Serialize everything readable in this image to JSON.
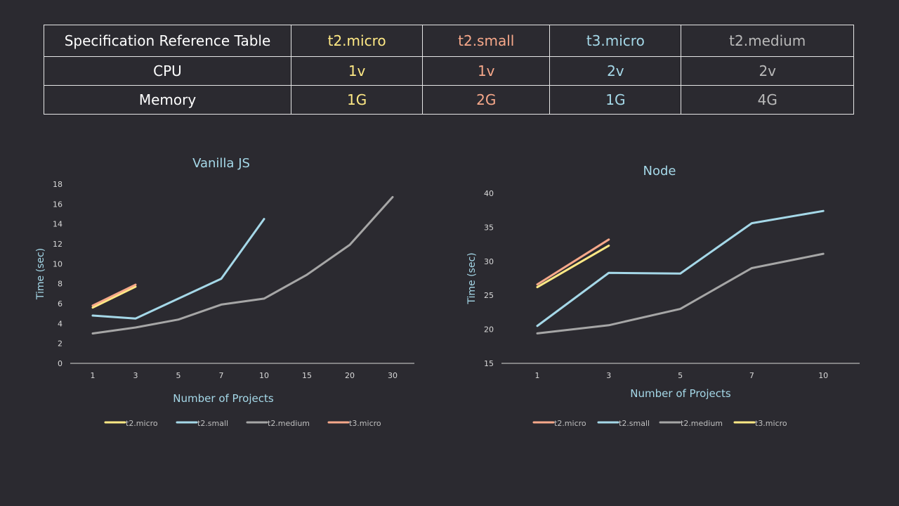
{
  "table": {
    "title": "Specification Reference Table",
    "columns": [
      {
        "name": "t2.micro",
        "color": "#ffe985",
        "cpu": "1v",
        "memory": "1G"
      },
      {
        "name": "t2.small",
        "color": "#f6a88a",
        "cpu": "1v",
        "memory": "2G"
      },
      {
        "name": "t3.micro",
        "color": "#a5d8e8",
        "cpu": "2v",
        "memory": "1G"
      },
      {
        "name": "t2.medium",
        "color": "#b9b9b9",
        "cpu": "2v",
        "memory": "4G"
      }
    ],
    "rows": [
      "CPU",
      "Memory"
    ]
  },
  "chart_data": [
    {
      "type": "line",
      "title": "Vanilla JS",
      "xlabel": "Number of Projects",
      "ylabel": "Time (sec)",
      "categories": [
        "1",
        "3",
        "5",
        "7",
        "10",
        "15",
        "20",
        "30"
      ],
      "ylim": [
        0,
        18
      ],
      "yticks": [
        "0",
        "2",
        "4",
        "6",
        "8",
        "10",
        "12",
        "14",
        "16",
        "18"
      ],
      "legend_position": "bottom",
      "series": [
        {
          "name": "t2.micro",
          "color": "#ffe985",
          "values": [
            5.6,
            7.7,
            null,
            null,
            null,
            null,
            null,
            null
          ]
        },
        {
          "name": "t2.small",
          "color": "#a5d8e8",
          "values": [
            4.8,
            4.5,
            6.5,
            8.5,
            14.5,
            null,
            null,
            null
          ]
        },
        {
          "name": "t2.medium",
          "color": "#a6a6a6",
          "values": [
            3.0,
            3.6,
            4.4,
            5.9,
            6.5,
            8.9,
            11.9,
            16.7
          ]
        },
        {
          "name": "t3.micro",
          "color": "#f6a88a",
          "values": [
            5.8,
            7.9,
            null,
            null,
            null,
            null,
            null,
            null
          ]
        }
      ]
    },
    {
      "type": "line",
      "title": "Node",
      "xlabel": "Number of Projects",
      "ylabel": "Time (sec)",
      "categories": [
        "1",
        "3",
        "5",
        "7",
        "10"
      ],
      "ylim": [
        15,
        40
      ],
      "yticks": [
        "15",
        "20",
        "25",
        "30",
        "35",
        "40"
      ],
      "legend_position": "bottom",
      "series": [
        {
          "name": "t2.micro",
          "color": "#f6a88a",
          "values": [
            26.6,
            33.2,
            null,
            null,
            null
          ]
        },
        {
          "name": "t2.small",
          "color": "#a5d8e8",
          "values": [
            20.5,
            28.3,
            28.2,
            35.6,
            37.4
          ]
        },
        {
          "name": "t2.medium",
          "color": "#a6a6a6",
          "values": [
            19.4,
            20.6,
            23.0,
            29.0,
            31.1
          ]
        },
        {
          "name": "t3.micro",
          "color": "#ffe985",
          "values": [
            26.2,
            32.3,
            null,
            null,
            null
          ]
        }
      ]
    }
  ]
}
